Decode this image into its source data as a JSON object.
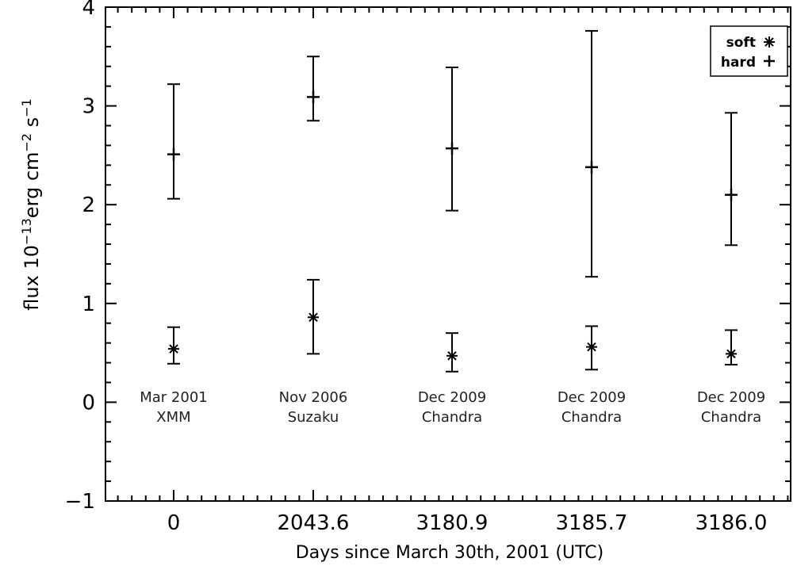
{
  "chart_data": {
    "type": "scatter",
    "ylabel": {
      "base": "flux 10",
      "exp1": "−13",
      "mid1": "erg cm",
      "exp2": "−2",
      "mid2": " s",
      "exp3": "−1"
    },
    "xlabel": "Days since March 30th, 2001 (UTC)",
    "ylim": [
      -1,
      4
    ],
    "y_ticks": [
      -1,
      0,
      1,
      2,
      3,
      4
    ],
    "y_tick_labels": [
      "−1",
      "0",
      "1",
      "2",
      "3",
      "4"
    ],
    "categories": [
      "0",
      "2043.6",
      "3180.9",
      "3185.7",
      "3186.0"
    ],
    "observations": [
      {
        "date": "Mar 2001",
        "mission": "XMM"
      },
      {
        "date": "Nov 2006",
        "mission": "Suzaku"
      },
      {
        "date": "Dec 2009",
        "mission": "Chandra"
      },
      {
        "date": "Dec 2009",
        "mission": "Chandra"
      },
      {
        "date": "Dec 2009",
        "mission": "Chandra"
      }
    ],
    "series": [
      {
        "name": "soft",
        "marker": "asterisk",
        "values": [
          0.54,
          0.86,
          0.47,
          0.56,
          0.49
        ],
        "err_low": [
          0.39,
          0.49,
          0.31,
          0.33,
          0.38
        ],
        "err_high": [
          0.76,
          1.24,
          0.7,
          0.77,
          0.73
        ]
      },
      {
        "name": "hard",
        "marker": "plus",
        "values": [
          2.51,
          3.09,
          2.57,
          2.38,
          2.1
        ],
        "err_low": [
          2.06,
          2.85,
          1.94,
          1.27,
          1.59
        ],
        "err_high": [
          3.22,
          3.5,
          3.39,
          3.76,
          2.93
        ]
      }
    ],
    "legend": {
      "position": "top-right",
      "entries": [
        "soft",
        "hard"
      ]
    },
    "grid": false
  }
}
